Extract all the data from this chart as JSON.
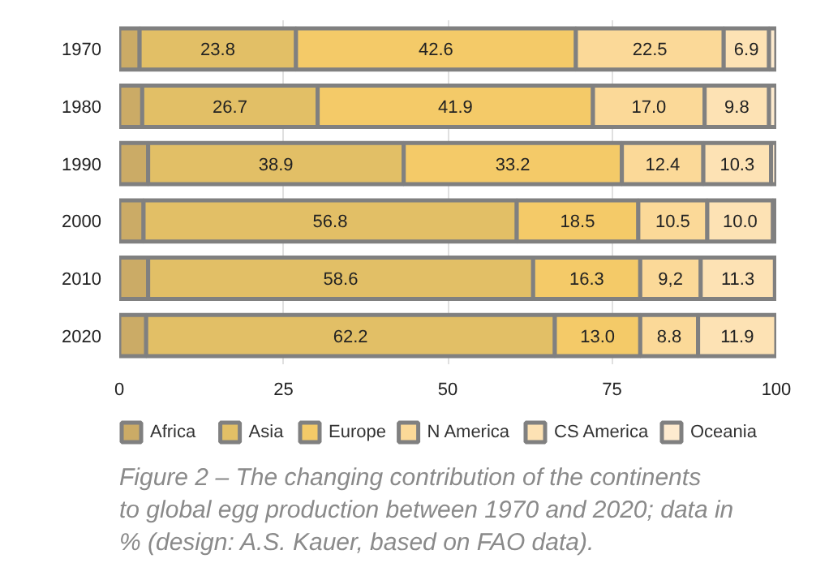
{
  "chart_data": {
    "type": "bar",
    "orientation": "horizontal",
    "stacked": true,
    "categories": [
      "1970",
      "1980",
      "1990",
      "2000",
      "2010",
      "2020"
    ],
    "series": [
      {
        "name": "Africa",
        "color": "#cbab66",
        "values": [
          3.1,
          3.5,
          4.4,
          3.7,
          4.4,
          4.1
        ]
      },
      {
        "name": "Asia",
        "color": "#e2bf66",
        "values": [
          23.8,
          26.7,
          38.9,
          56.8,
          58.6,
          62.2
        ],
        "value_labels": [
          "23.8",
          "26.7",
          "38.9",
          "56.8",
          "58.6",
          "62.2"
        ]
      },
      {
        "name": "Europe",
        "color": "#f4ca68",
        "values": [
          42.6,
          41.9,
          33.2,
          18.5,
          16.3,
          13.0
        ],
        "value_labels": [
          "42.6",
          "41.9",
          "33.2",
          "18.5",
          "16.3",
          "13.0"
        ]
      },
      {
        "name": "N America",
        "color": "#fbd998",
        "values": [
          22.5,
          17.0,
          12.4,
          10.5,
          9.2,
          8.8
        ],
        "value_labels": [
          "22.5",
          "17.0",
          "12.4",
          "10.5",
          "9,2",
          "8.8"
        ]
      },
      {
        "name": "CS America",
        "color": "#fde2b4",
        "values": [
          6.9,
          9.8,
          10.3,
          10.0,
          11.3,
          11.9
        ],
        "value_labels": [
          "6.9",
          "9.8",
          "10.3",
          "10.0",
          "11.3",
          "11.9"
        ]
      },
      {
        "name": "Oceania",
        "color": "#feebcf",
        "values": [
          1.1,
          1.1,
          0.8,
          0.5,
          0.2,
          null
        ]
      }
    ],
    "xlim": [
      0,
      100
    ],
    "xticks": [
      0,
      25,
      50,
      75,
      100
    ],
    "grid": "x",
    "legend": "bottom",
    "annotations": [
      "Figure 2 – The changing contribution of the continents to global egg production between 1970 and 2020; data in % (design: A.S. Kauer, based on FAO data)."
    ]
  }
}
